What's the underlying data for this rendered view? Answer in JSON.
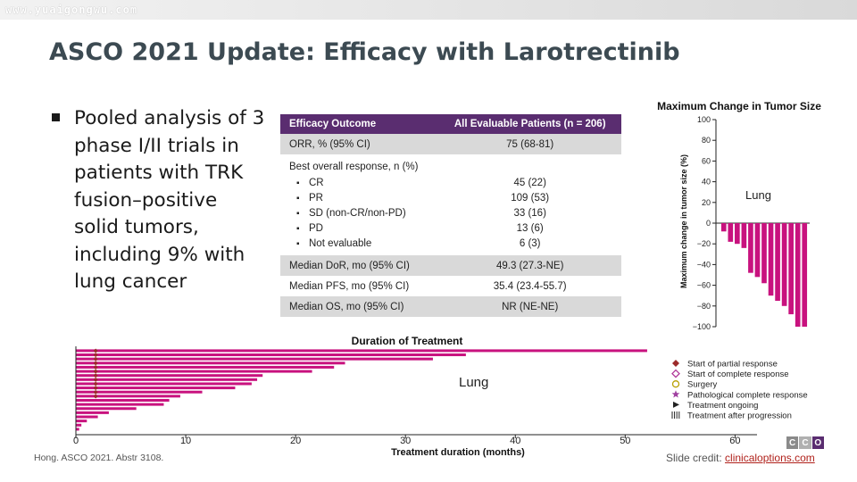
{
  "watermark": "www.yuaigongwu.com",
  "title": "ASCO 2021 Update: Efficacy with Larotrectinib",
  "bullet": "Pooled analysis of 3 phase I/II trials in patients with TRK fusion–positive solid tumors, including 9% with lung cancer",
  "table": {
    "headers": [
      "Efficacy Outcome",
      "All Evaluable Patients (n = 206)"
    ],
    "orr": {
      "label": "ORR, % (95% CI)",
      "value": "75 (68-81)"
    },
    "bor_label": "Best overall response, n (%)",
    "bor_items": [
      {
        "label": "CR",
        "value": "45 (22)"
      },
      {
        "label": "PR",
        "value": "109 (53)"
      },
      {
        "label": "SD (non-CR/non-PD)",
        "value": "33 (16)"
      },
      {
        "label": "PD",
        "value": "13 (6)"
      },
      {
        "label": "Not evaluable",
        "value": "6 (3)"
      }
    ],
    "dor": {
      "label": "Median DoR, mo (95% CI)",
      "value": "49.3 (27.3-NE)"
    },
    "pfs": {
      "label": "Median PFS, mo (95% CI)",
      "value": "35.4 (23.4-55.7)"
    },
    "os": {
      "label": "Median OS, mo (95% CI)",
      "value": "NR (NE-NE)"
    }
  },
  "chart_data": [
    {
      "type": "bar",
      "title": "Maximum Change in Tumor Size",
      "ylabel": "Maximum change in tumor size (%)",
      "ylim": [
        -100,
        100
      ],
      "yticks": [
        100,
        80,
        60,
        40,
        20,
        0,
        -20,
        -40,
        -60,
        -80,
        -100
      ],
      "annotation": "Lung",
      "values": [
        -8,
        -18,
        -20,
        -24,
        -48,
        -52,
        -58,
        -70,
        -75,
        -80,
        -88,
        -100,
        -100
      ]
    },
    {
      "type": "bar",
      "orientation": "horizontal",
      "title": "Duration of Treatment",
      "xlabel": "Treatment duration (months)",
      "xlim": [
        0,
        62
      ],
      "xticks": [
        0,
        10,
        20,
        30,
        40,
        50,
        60
      ],
      "annotation": "Lung",
      "values": [
        52,
        35.5,
        32.5,
        24.5,
        23.5,
        21.5,
        17,
        16.5,
        16,
        14.5,
        11.5,
        9.5,
        8.5,
        8,
        5.5,
        3,
        2,
        1,
        0.5,
        0.3
      ]
    }
  ],
  "legend": [
    {
      "label": "Start of partial response",
      "symbol": "diamond",
      "color": "#9c2a2a"
    },
    {
      "label": "Start of complete response",
      "symbol": "diamond-open",
      "color": "#b23a9a"
    },
    {
      "label": "Surgery",
      "symbol": "circle-open",
      "color": "#b8a000"
    },
    {
      "label": "Pathological complete response",
      "symbol": "star",
      "color": "#a040a0"
    },
    {
      "label": "Treatment ongoing",
      "symbol": "arrow",
      "color": "#222222"
    },
    {
      "label": "Treatment after progression",
      "symbol": "bars",
      "color": "#222222"
    }
  ],
  "bar_color": "#c8127e",
  "logo_letters": [
    "C",
    "C",
    "O"
  ],
  "logo_colors": [
    "#8a8a8a",
    "#b0b0b0",
    "#5a2d70"
  ],
  "credit_left": "Hong. ASCO 2021. Abstr 3108.",
  "credit_right_prefix": "Slide credit: ",
  "credit_right_link": "clinicaloptions.com"
}
